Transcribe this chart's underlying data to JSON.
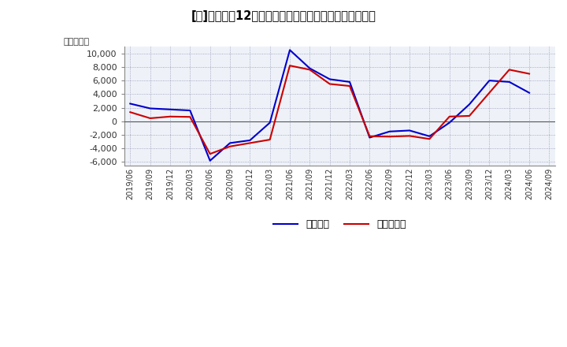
{
  "title": "[牐]　利益の12か月移動合計の対前年同期増減額の推移",
  "ylabel": "（百万円）",
  "background_color": "#ffffff",
  "plot_background": "#eef2f8",
  "grid_color": "#8888aa",
  "ylim": [
    -6500,
    11000
  ],
  "yticks": [
    -6000,
    -4000,
    -2000,
    0,
    2000,
    4000,
    6000,
    8000,
    10000
  ],
  "legend_labels": [
    "経常利益",
    "当期純利益"
  ],
  "legend_colors": [
    "#0000cc",
    "#cc0000"
  ],
  "x_labels": [
    "2019/06",
    "2019/09",
    "2019/12",
    "2020/03",
    "2020/06",
    "2020/09",
    "2020/12",
    "2021/03",
    "2021/06",
    "2021/09",
    "2021/12",
    "2022/03",
    "2022/06",
    "2022/09",
    "2022/12",
    "2023/03",
    "2023/06",
    "2023/09",
    "2023/12",
    "2024/03",
    "2024/06",
    "2024/09"
  ],
  "keijo_rieki": [
    2600,
    1900,
    1750,
    1600,
    -5800,
    -3200,
    -2800,
    -200,
    10500,
    7800,
    6200,
    5800,
    -2400,
    -1500,
    -1350,
    -2200,
    -200,
    2500,
    6000,
    5800,
    4200,
    null
  ],
  "touki_junrieki": [
    1350,
    450,
    700,
    650,
    -4800,
    -3700,
    -3200,
    -2700,
    8200,
    7600,
    5500,
    5200,
    -2200,
    -2250,
    -2150,
    -2600,
    700,
    800,
    4200,
    7600,
    7000,
    null
  ]
}
